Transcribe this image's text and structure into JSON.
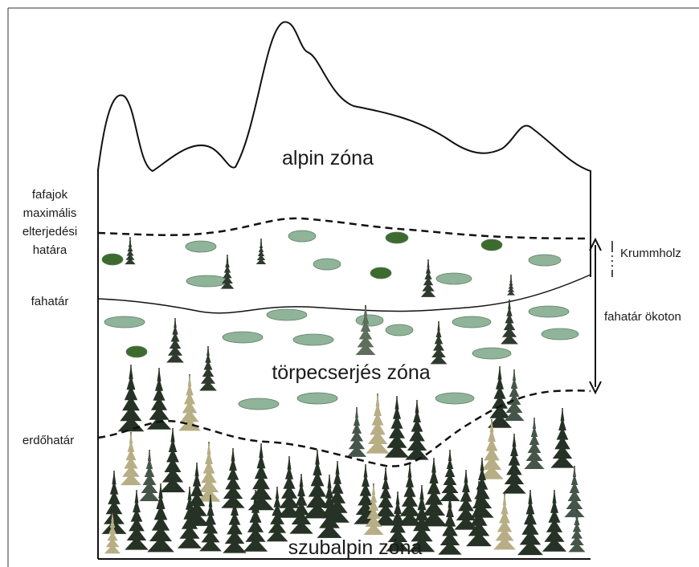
{
  "labels": {
    "alpine_zone": "alpin zóna",
    "max_species_limit": [
      "fafajok",
      "maximális",
      "elterjedési",
      "határa"
    ],
    "treeline": "fahatár",
    "krummholz": "Krummholz",
    "ecotone": "fahatár ökoton",
    "dwarf_shrub_zone": "törpecserjés zóna",
    "forest_line": "erdőhatár",
    "subalpine_zone": "szubalpin zóna"
  }
}
